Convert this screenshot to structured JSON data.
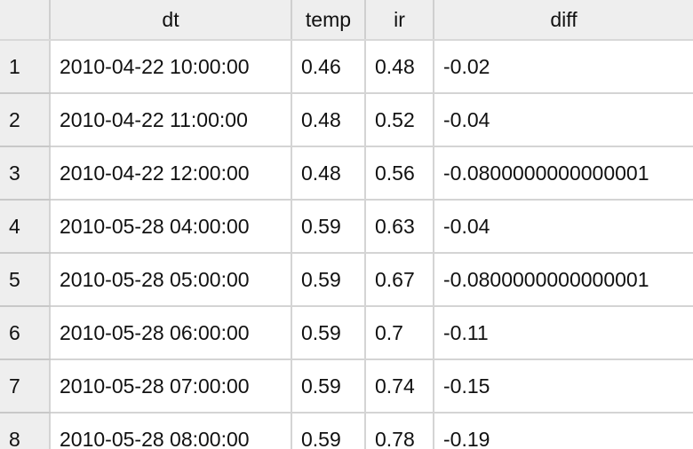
{
  "table": {
    "columns": [
      "",
      "dt",
      "temp",
      "ir",
      "diff"
    ],
    "rows": [
      {
        "num": "1",
        "dt": "2010-04-22 10:00:00",
        "temp": "0.46",
        "ir": "0.48",
        "diff": "-0.02"
      },
      {
        "num": "2",
        "dt": "2010-04-22 11:00:00",
        "temp": "0.48",
        "ir": "0.52",
        "diff": "-0.04"
      },
      {
        "num": "3",
        "dt": "2010-04-22 12:00:00",
        "temp": "0.48",
        "ir": "0.56",
        "diff": "-0.0800000000000001"
      },
      {
        "num": "4",
        "dt": "2010-05-28 04:00:00",
        "temp": "0.59",
        "ir": "0.63",
        "diff": "-0.04"
      },
      {
        "num": "5",
        "dt": "2010-05-28 05:00:00",
        "temp": "0.59",
        "ir": "0.67",
        "diff": "-0.0800000000000001"
      },
      {
        "num": "6",
        "dt": "2010-05-28 06:00:00",
        "temp": "0.59",
        "ir": "0.7",
        "diff": "-0.11"
      },
      {
        "num": "7",
        "dt": "2010-05-28 07:00:00",
        "temp": "0.59",
        "ir": "0.74",
        "diff": "-0.15"
      },
      {
        "num": "8",
        "dt": "2010-05-28 08:00:00",
        "temp": "0.59",
        "ir": "0.78",
        "diff": "-0.19"
      }
    ]
  }
}
